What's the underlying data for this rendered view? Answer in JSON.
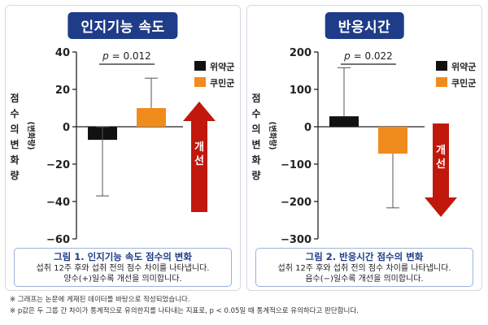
{
  "charts": [
    {
      "title": "인지기능 속도",
      "y_label_chars": [
        "점",
        "수",
        "의",
        "변",
        "화",
        "량"
      ],
      "y_label_sub": "(변화량)",
      "arrow_label": "개선",
      "caption": {
        "title": "그림 1. 인지기능 속도 점수의 변화",
        "line1": "섭취 12주 후와 섭취 전의 점수 차이를 나타냅니다.",
        "line2": "양수(+)일수록 개선을 의미합니다."
      }
    },
    {
      "title": "반응시간",
      "y_label_chars": [
        "점",
        "수",
        "의",
        "변",
        "화",
        "량"
      ],
      "y_label_sub": "(변화량)",
      "arrow_label": "개선",
      "caption": {
        "title": "그림 2. 반응시간 점수의 변화",
        "line1": "섭취 12주 후와 섭취 전의 점수 차이를 나타냅니다.",
        "line2": "음수(−)일수록 개선을 의미합니다."
      }
    }
  ],
  "footnotes": [
    "※ 그래프는 논문에 게재된 데이터를 바탕으로 작성되었습니다.",
    "※ p값은 두 그룹 간 차이가 통계적으로 유의한지를 나타내는 지표로, p < 0.05일 때 통계적으로 유의하다고 판단합니다."
  ],
  "colors": {
    "title_bg": "#1f3c88",
    "placebo": "#111111",
    "treatment": "#f08c1e",
    "arrow": "#c0180c"
  },
  "chart_data": [
    {
      "type": "bar",
      "title": "인지기능 속도",
      "ylabel": "점수의 변화량",
      "categories": [
        "위약군",
        "쿠민군"
      ],
      "values": [
        -7,
        10
      ],
      "error_upper": [
        0,
        26
      ],
      "error_lower": [
        -37,
        10
      ],
      "ylim": [
        -60,
        40
      ],
      "yticks": [
        40,
        20,
        0,
        -20,
        -40,
        -60
      ],
      "ytick_labels": [
        "40",
        "20",
        "0",
        "−20",
        "−40",
        "−60"
      ],
      "legend": [
        "위약군",
        "쿠민군"
      ],
      "legend_position": "top-right",
      "p_label_prefix": "p",
      "p_label_rest": " = 0.012",
      "arrow_direction": "up",
      "grid": false
    },
    {
      "type": "bar",
      "title": "반응시간",
      "ylabel": "점수의 변화량",
      "categories": [
        "위약군",
        "쿠민군"
      ],
      "values": [
        28,
        -72
      ],
      "error_upper": [
        158,
        -72
      ],
      "error_lower": [
        28,
        -217
      ],
      "ylim": [
        -300,
        200
      ],
      "yticks": [
        200,
        100,
        0,
        -100,
        -200,
        -300
      ],
      "ytick_labels": [
        "200",
        "100",
        "0",
        "−100",
        "−200",
        "−300"
      ],
      "legend": [
        "위약군",
        "쿠민군"
      ],
      "legend_position": "top-right",
      "p_label_prefix": "p",
      "p_label_rest": " = 0.022",
      "arrow_direction": "down",
      "grid": false
    }
  ]
}
